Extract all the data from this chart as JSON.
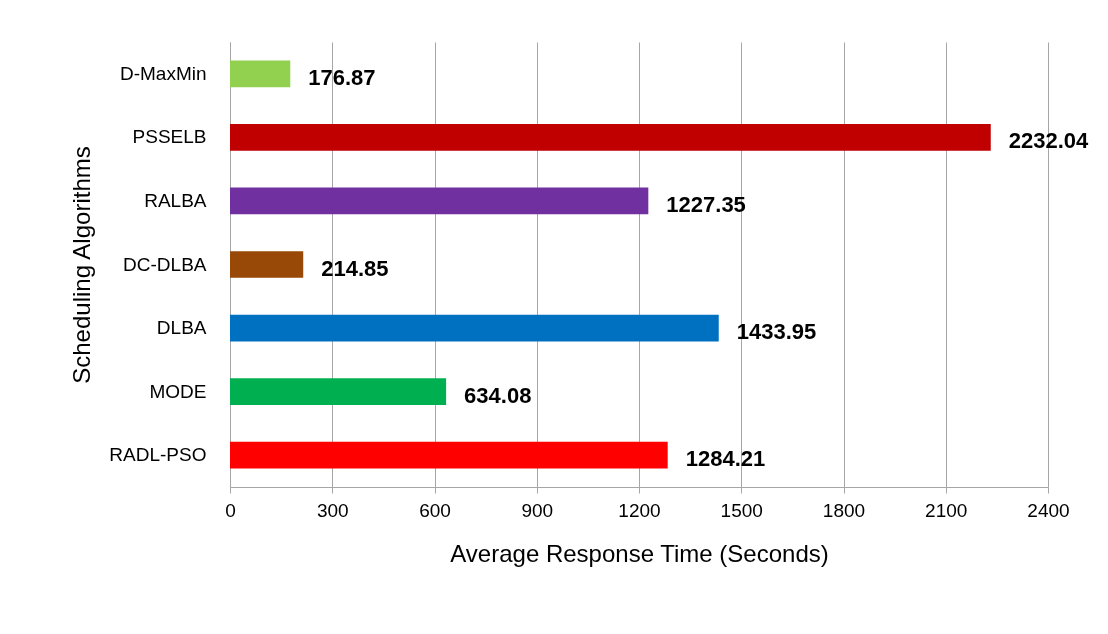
{
  "chart_data": {
    "type": "bar",
    "orientation": "horizontal",
    "xlabel": "Average Response Time (Seconds)",
    "ylabel": "Scheduling Algorithms",
    "categories": [
      "D-MaxMin",
      "PSSELB",
      "RALBA",
      "DC-DLBA",
      "DLBA",
      "MODE",
      "RADL-PSO"
    ],
    "values": [
      176.87,
      2232.04,
      1227.35,
      214.85,
      1433.95,
      634.08,
      1284.21
    ],
    "colors": [
      "#92d050",
      "#c00000",
      "#7030a0",
      "#984807",
      "#0070c0",
      "#00b050",
      "#ff0000"
    ],
    "xlim": [
      0,
      2400
    ],
    "xticks": [
      0,
      300,
      600,
      900,
      1200,
      1500,
      1800,
      2100,
      2400
    ],
    "grid": "x",
    "data_labels": true
  }
}
